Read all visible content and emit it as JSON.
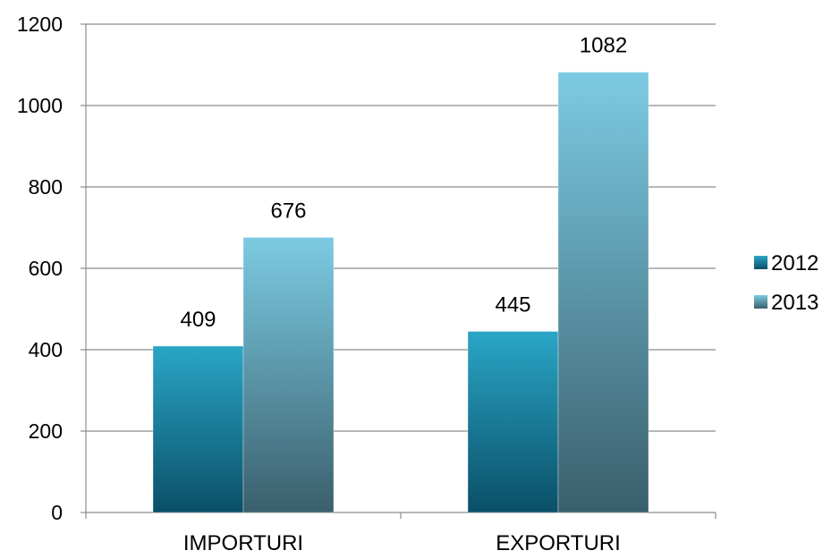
{
  "chart_data": {
    "type": "bar",
    "categories": [
      "IMPORTURI",
      "EXPORTURI"
    ],
    "series": [
      {
        "name": "2012",
        "values": [
          409,
          445
        ],
        "color": "#0e6e8c"
      },
      {
        "name": "2013",
        "values": [
          676,
          1082
        ],
        "color": "#4f8fa8"
      }
    ],
    "title": "",
    "xlabel": "",
    "ylabel": "",
    "ylim": [
      0,
      1200
    ],
    "yticks": [
      0,
      200,
      400,
      600,
      800,
      1000,
      1200
    ],
    "ytick_labels": [
      "0",
      "200",
      "400",
      "600",
      "800",
      "1000",
      "1200"
    ],
    "grid": true,
    "legend": "right",
    "data_labels": true
  }
}
